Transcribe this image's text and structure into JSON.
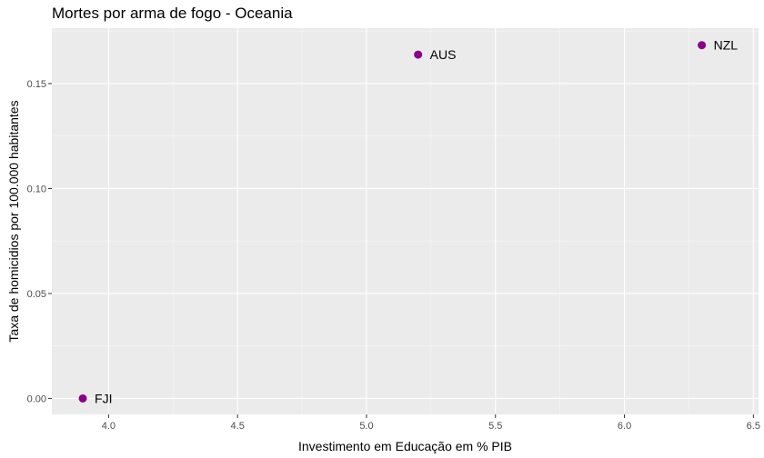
{
  "chart_data": {
    "type": "scatter",
    "title": "Mortes por arma de fogo - Oceania",
    "xlabel": "Investimento em Educação em % PIB",
    "ylabel": "Taxa de homicidios por 100.000 habitantes",
    "xlim": [
      3.78,
      6.52
    ],
    "ylim": [
      -0.0076,
      0.1764
    ],
    "x_ticks": [
      "4.0",
      "4.5",
      "5.0",
      "5.5",
      "6.0",
      "6.5"
    ],
    "x_tick_values": [
      4.0,
      4.5,
      5.0,
      5.5,
      6.0,
      6.5
    ],
    "y_ticks": [
      "0.00",
      "0.05",
      "0.10",
      "0.15"
    ],
    "y_tick_values": [
      0.0,
      0.05,
      0.1,
      0.15
    ],
    "grid": true,
    "panel_background": "#ebebeb",
    "point_color": "#8b008b",
    "points": [
      {
        "label": "FJI",
        "x": 3.9,
        "y": 0.0
      },
      {
        "label": "AUS",
        "x": 5.2,
        "y": 0.1638
      },
      {
        "label": "NZL",
        "x": 6.3,
        "y": 0.1683
      }
    ]
  }
}
